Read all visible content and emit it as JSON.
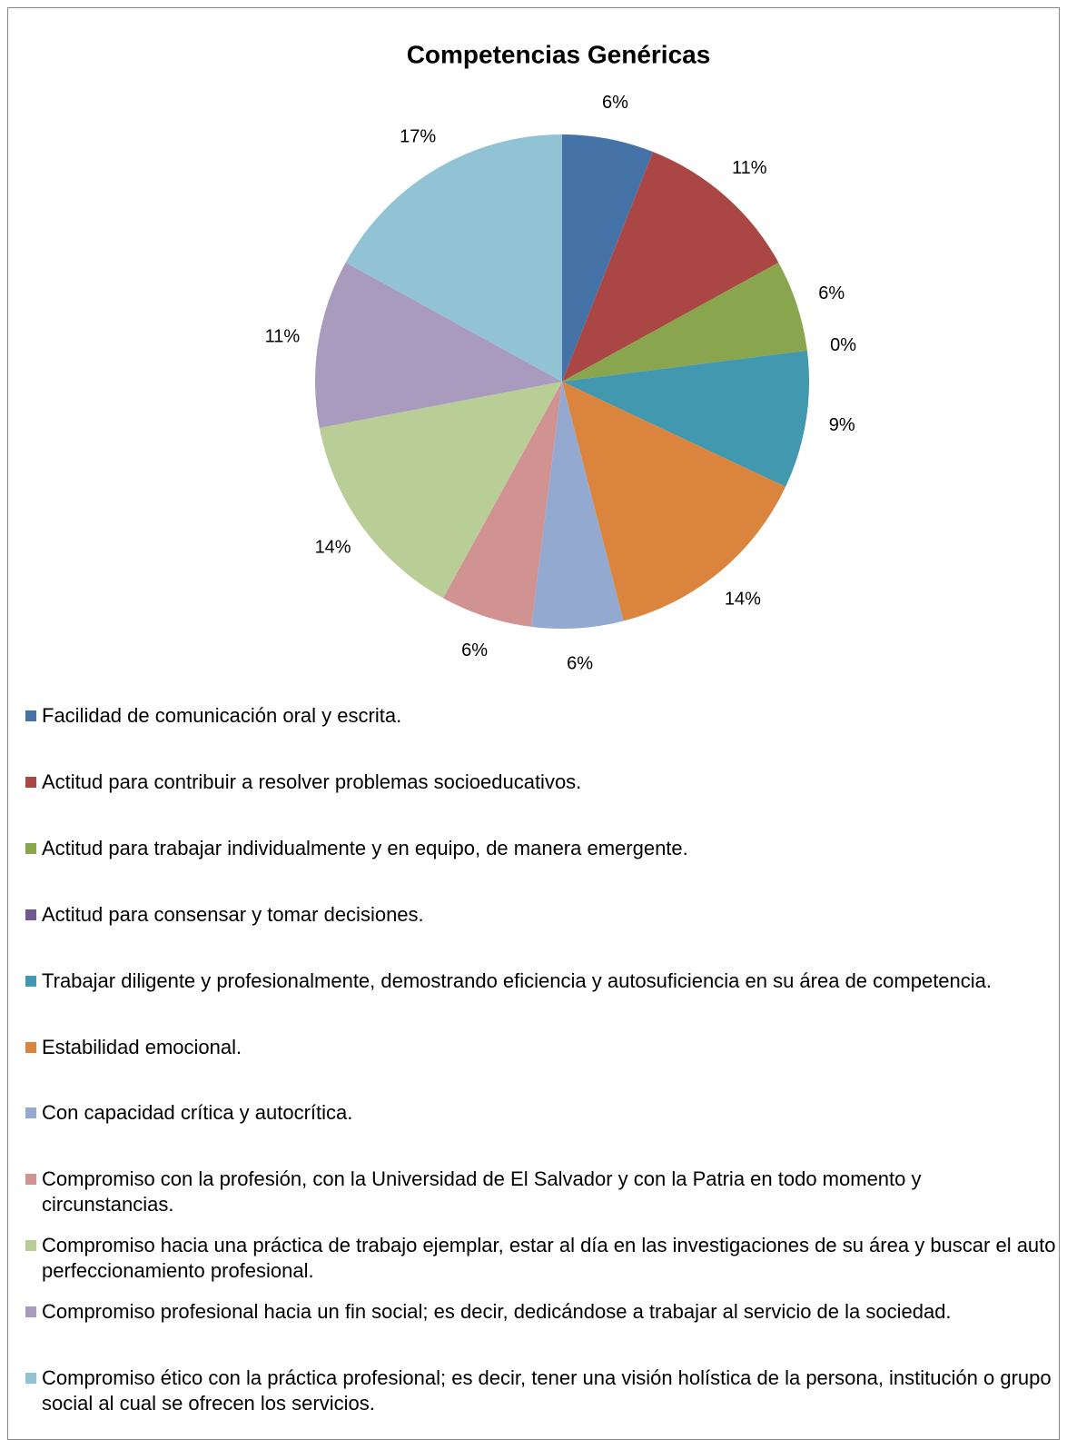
{
  "chart_data": {
    "type": "pie",
    "title": "Competencias Genéricas",
    "categories": [
      "Facilidad de comunicación oral y escrita.",
      "Actitud para contribuir a resolver problemas socioeducativos.",
      "Actitud para trabajar individualmente y en equipo, de manera emergente.",
      "Actitud para consensar y tomar decisiones.",
      "Trabajar diligente y profesionalmente, demostrando eficiencia y autosuficiencia en su área de competencia.",
      "Estabilidad emocional.",
      "Con capacidad crítica y autocrítica.",
      "Compromiso con la profesión, con la Universidad de El Salvador y con la Patria en todo momento y circunstancias.",
      "Compromiso hacia una práctica de trabajo ejemplar, estar al día en las investigaciones de su área y buscar el auto perfeccionamiento profesional.",
      "Compromiso profesional hacia un fin social; es decir, dedicándose a trabajar al servicio de la sociedad.",
      "Compromiso ético con la práctica profesional; es decir, tener una visión holística de la persona, institución o grupo social al cual se ofrecen los servicios."
    ],
    "values": [
      6,
      11,
      6,
      0,
      9,
      14,
      6,
      6,
      14,
      11,
      17
    ],
    "value_labels": [
      "6%",
      "11%",
      "6%",
      "0%",
      "9%",
      "14%",
      "6%",
      "6%",
      "14%",
      "11%",
      "17%"
    ],
    "colors": [
      "#4572a7",
      "#aa4643",
      "#89a54e",
      "#71588f",
      "#4198af",
      "#db843d",
      "#93a9cf",
      "#d19392",
      "#b9cd96",
      "#a99bbd",
      "#92c3d5"
    ],
    "legend": "bottom"
  }
}
